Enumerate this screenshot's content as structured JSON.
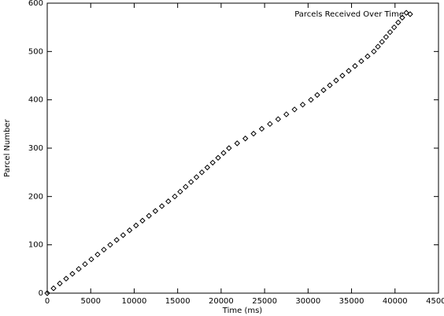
{
  "chart_data": {
    "type": "scatter",
    "xlabel": "Time (ms)",
    "ylabel": "Parcel Number",
    "xlim": [
      0,
      45000
    ],
    "ylim": [
      0,
      600
    ],
    "xticks": [
      0,
      5000,
      10000,
      15000,
      20000,
      25000,
      30000,
      35000,
      40000,
      45000
    ],
    "yticks": [
      0,
      100,
      200,
      300,
      400,
      500,
      600
    ],
    "legend": "top-right",
    "series": [
      {
        "name": "Parcels Received Over Time",
        "color": "#000000",
        "x": [
          0,
          724,
          1448,
          2172,
          2896,
          3620,
          4344,
          5068,
          5792,
          6516,
          7240,
          7983,
          8726,
          9469,
          10212,
          10955,
          11698,
          12441,
          13184,
          13927,
          14670,
          15293,
          15916,
          16539,
          17162,
          17785,
          18408,
          19031,
          19654,
          20277,
          20900,
          21843,
          22786,
          23729,
          24672,
          25615,
          26558,
          27501,
          28444,
          29387,
          30330,
          31054,
          31778,
          32502,
          33226,
          33950,
          34674,
          35398,
          36122,
          36846,
          37570,
          38036,
          38502,
          38968,
          39434,
          39900,
          40366,
          40832,
          41298
        ],
        "values": [
          0,
          10,
          20,
          30,
          40,
          50,
          60,
          70,
          80,
          90,
          100,
          110,
          120,
          130,
          140,
          150,
          160,
          170,
          180,
          190,
          200,
          210,
          220,
          230,
          240,
          250,
          260,
          270,
          280,
          290,
          300,
          310,
          320,
          330,
          340,
          350,
          360,
          370,
          380,
          390,
          400,
          410,
          420,
          430,
          440,
          450,
          460,
          470,
          480,
          490,
          500,
          510,
          520,
          530,
          540,
          550,
          560,
          570,
          580
        ]
      }
    ]
  }
}
